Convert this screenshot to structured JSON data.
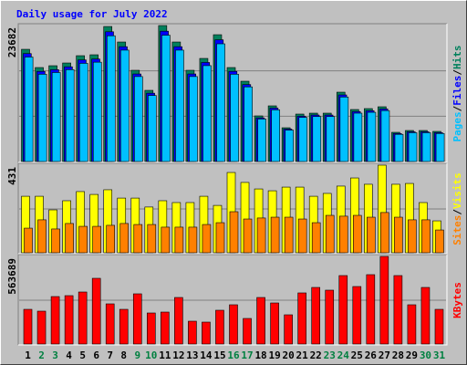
{
  "chart_data": [
    {
      "type": "bar",
      "title": "Daily usage for July 2022",
      "ylim": [
        0,
        23682
      ],
      "yticks": [
        23682
      ],
      "grid_lines": 2,
      "legend_separator": "/",
      "series": [
        {
          "name": "Hits",
          "color": "#00805c",
          "values": [
            19545,
            16367,
            16685,
            17161,
            18433,
            18591,
            23517,
            20816,
            15890,
            12394,
            23682,
            20816,
            15890,
            17956,
            22087,
            16367,
            13983,
            7945,
            9693,
            5879,
            8263,
            8422,
            8422,
            12076,
            9057,
            9216,
            9534,
            5085,
            5403,
            5403,
            5244
          ]
        },
        {
          "name": "Files",
          "color": "#0000ff",
          "values": [
            18800,
            15700,
            16000,
            16500,
            17700,
            17850,
            22600,
            20000,
            15250,
            11900,
            22700,
            20000,
            15250,
            17250,
            21200,
            15700,
            13400,
            7600,
            9300,
            5650,
            7900,
            8100,
            8100,
            11600,
            8700,
            8850,
            9150,
            4880,
            5180,
            5180,
            5030
          ]
        },
        {
          "name": "Pages",
          "color": "#00c0ff",
          "values": [
            18200,
            15200,
            15500,
            16000,
            17100,
            17300,
            21900,
            19400,
            14800,
            11500,
            22000,
            19400,
            14800,
            16700,
            20500,
            15200,
            13000,
            7400,
            9000,
            5470,
            7680,
            7830,
            7830,
            11230,
            8420,
            8570,
            8870,
            4730,
            5020,
            5020,
            4880
          ]
        }
      ]
    },
    {
      "type": "bar",
      "ylim": [
        0,
        431
      ],
      "yticks": [
        431
      ],
      "grid_lines": 1,
      "legend_separator": "/",
      "series": [
        {
          "name": "Visits",
          "color": "#ffff00",
          "values": [
            278,
            278,
            211,
            256,
            301,
            287,
            310,
            269,
            269,
            225,
            256,
            247,
            247,
            278,
            233,
            395,
            346,
            314,
            305,
            323,
            323,
            278,
            292,
            328,
            368,
            337,
            431,
            337,
            341,
            247,
            157
          ]
        },
        {
          "name": "Sites",
          "color": "#ff8000",
          "values": [
            121,
            162,
            117,
            144,
            130,
            130,
            135,
            144,
            139,
            139,
            126,
            126,
            126,
            139,
            148,
            202,
            166,
            171,
            175,
            175,
            166,
            148,
            184,
            180,
            184,
            175,
            198,
            175,
            162,
            162,
            112
          ]
        }
      ]
    },
    {
      "type": "bar",
      "ylim": [
        0,
        563689
      ],
      "yticks": [
        563689
      ],
      "grid_lines": 1,
      "categories": [
        "1",
        "2",
        "3",
        "4",
        "5",
        "6",
        "7",
        "8",
        "9",
        "10",
        "11",
        "12",
        "13",
        "14",
        "15",
        "16",
        "17",
        "18",
        "19",
        "20",
        "21",
        "22",
        "23",
        "24",
        "25",
        "26",
        "27",
        "28",
        "29",
        "30",
        "31"
      ],
      "category_colors": [
        "#000000",
        "#008040",
        "#008040",
        "#000000",
        "#000000",
        "#000000",
        "#000000",
        "#000000",
        "#008040",
        "#008040",
        "#000000",
        "#000000",
        "#000000",
        "#000000",
        "#000000",
        "#008040",
        "#008040",
        "#000000",
        "#000000",
        "#000000",
        "#000000",
        "#000000",
        "#008040",
        "#008040",
        "#000000",
        "#000000",
        "#000000",
        "#000000",
        "#000000",
        "#008040",
        "#008040"
      ],
      "series": [
        {
          "name": "KBytes",
          "color": "#ff0000",
          "values": [
            223136,
            211392,
            305344,
            311216,
            334704,
            422784,
            258368,
            223136,
            322960,
            199648,
            205520,
            299472,
            146800,
            140928,
            217264,
            252496,
            164416,
            299472,
            264240,
            187904,
            328832,
            364064,
            346448,
            440400,
            369936,
            446272,
            563689,
            440400,
            252496,
            364064,
            223136
          ]
        }
      ]
    }
  ]
}
